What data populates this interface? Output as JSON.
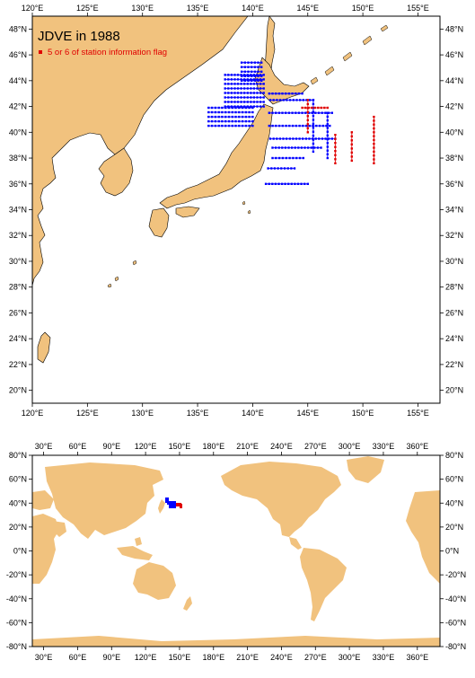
{
  "colors": {
    "land": "#f1c27e",
    "ocean": "#ffffff",
    "track": "#0000ff",
    "flag": "#e00000"
  },
  "regional_map": {
    "title": "JDVE in 1988",
    "legend_label": "5 or 6 of station information flag",
    "lon_range": [
      120,
      157
    ],
    "lat_range": [
      19,
      49
    ],
    "x_ticks": [
      "120°E",
      "125°E",
      "130°E",
      "135°E",
      "140°E",
      "145°E",
      "150°E",
      "155°E"
    ],
    "y_ticks_left": [
      "20°N",
      "22°N",
      "24°N",
      "26°N",
      "28°N",
      "30°N",
      "32°N",
      "34°N",
      "36°N",
      "38°N",
      "40°N",
      "42°N",
      "44°N",
      "46°N",
      "48°N"
    ],
    "y_ticks_right": [
      "20°N",
      "22°N",
      "24°N",
      "26°N",
      "28°N",
      "30°N",
      "32°N",
      "34°N",
      "36°N",
      "38°N",
      "40°N",
      "42°N",
      "44°N",
      "46°N",
      "48°N"
    ]
  },
  "global_map": {
    "lon_range": [
      20,
      380
    ],
    "lat_range": [
      -80,
      80
    ],
    "x_ticks": [
      "30°E",
      "60°E",
      "90°E",
      "120°E",
      "150°E",
      "180°E",
      "210°E",
      "240°E",
      "270°E",
      "300°E",
      "330°E",
      "360°E"
    ],
    "y_ticks_left": [
      "80°N",
      "60°N",
      "40°N",
      "20°N",
      "0°N",
      "-20°N",
      "-40°N",
      "-60°N",
      "-80°N"
    ],
    "y_ticks_right": [
      "80°N",
      "60°N",
      "40°N",
      "20°N",
      "0°N",
      "-20°N",
      "-40°N",
      "-60°N",
      "-80°N"
    ]
  },
  "stations": {
    "normal_lines": [
      {
        "type": "grid",
        "lon": [
          136.0,
          140.0
        ],
        "lat": [
          40.5,
          42.0
        ],
        "step": 0.35
      },
      {
        "type": "grid",
        "lon": [
          137.5,
          141.0
        ],
        "lat": [
          42.0,
          44.5
        ],
        "step": 0.35
      },
      {
        "type": "grid",
        "lon": [
          139.0,
          140.8
        ],
        "lat": [
          44.0,
          45.6
        ],
        "step": 0.35
      },
      {
        "type": "line",
        "points": [
          [
            141.5,
            41.5
          ],
          [
            147.2,
            41.5
          ]
        ]
      },
      {
        "type": "line",
        "points": [
          [
            141.5,
            40.5
          ],
          [
            147.0,
            40.5
          ]
        ]
      },
      {
        "type": "line",
        "points": [
          [
            141.6,
            39.5
          ],
          [
            147.5,
            39.5
          ]
        ]
      },
      {
        "type": "line",
        "points": [
          [
            141.8,
            38.8
          ],
          [
            146.2,
            38.8
          ]
        ]
      },
      {
        "type": "line",
        "points": [
          [
            141.8,
            38.0
          ],
          [
            144.6,
            38.0
          ]
        ]
      },
      {
        "type": "line",
        "points": [
          [
            141.4,
            37.2
          ],
          [
            143.8,
            37.2
          ]
        ]
      },
      {
        "type": "line",
        "points": [
          [
            141.2,
            36.0
          ],
          [
            145.0,
            36.0
          ]
        ]
      },
      {
        "type": "line",
        "points": [
          [
            141.6,
            42.5
          ],
          [
            145.5,
            42.5
          ]
        ]
      },
      {
        "type": "line",
        "points": [
          [
            145.5,
            42.5
          ],
          [
            145.5,
            38.5
          ]
        ]
      },
      {
        "type": "line",
        "points": [
          [
            146.8,
            41.5
          ],
          [
            146.8,
            38.0
          ]
        ]
      },
      {
        "type": "line",
        "points": [
          [
            141.5,
            43.0
          ],
          [
            144.5,
            43.0
          ]
        ]
      }
    ],
    "flagged_lines": [
      {
        "type": "line",
        "points": [
          [
            145.0,
            42.5
          ],
          [
            145.0,
            40.0
          ]
        ]
      },
      {
        "type": "line",
        "points": [
          [
            147.5,
            39.8
          ],
          [
            147.5,
            37.6
          ]
        ]
      },
      {
        "type": "line",
        "points": [
          [
            149.0,
            40.0
          ],
          [
            149.0,
            37.8
          ]
        ]
      },
      {
        "type": "line",
        "points": [
          [
            151.0,
            41.2
          ],
          [
            151.0,
            37.6
          ]
        ]
      },
      {
        "type": "line",
        "points": [
          [
            144.5,
            41.9
          ],
          [
            146.8,
            41.9
          ]
        ]
      }
    ]
  }
}
